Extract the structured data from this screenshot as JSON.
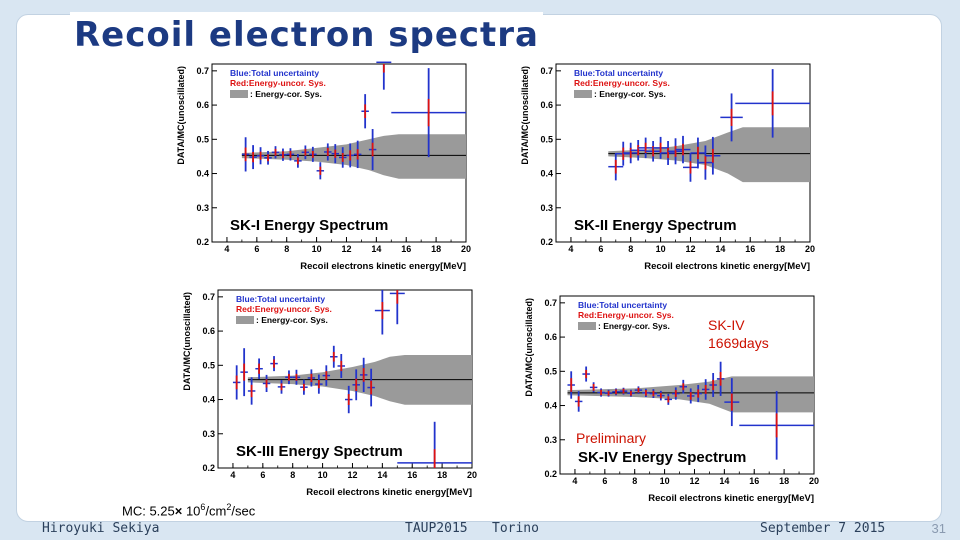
{
  "slide": {
    "title": "Recoil electron spectra",
    "annotation_sk4": "SK-IV",
    "annotation_days": "1669days",
    "preliminary": "Preliminary",
    "mc_prefix": "MC: 5.25",
    "mc_times": "×",
    "mc_base": " 10",
    "mc_exp": "6",
    "mc_unit": "/cm",
    "mc_unit_exp": "2",
    "mc_tail": "/sec",
    "footer_author": "Hiroyuki Sekiya",
    "footer_conf": "TAUP2015",
    "footer_place": "Torino",
    "footer_date": "September 7 2015",
    "page_number": "31"
  },
  "chart_data": [
    {
      "type": "scatter",
      "title": "SK-I Energy Spectrum",
      "xlabel": "Recoil electrons kinetic energy[MeV]",
      "ylabel": "DATA/MC(unoscillated)",
      "xlim": [
        3,
        20
      ],
      "ylim": [
        0.2,
        0.72
      ],
      "xticks": [
        4,
        6,
        8,
        10,
        12,
        14,
        16,
        18,
        20
      ],
      "yticks": [
        0.2,
        0.3,
        0.4,
        0.5,
        0.6,
        0.7
      ],
      "legend": [
        "Blue:Total uncertainty",
        "Red:Energy-uncor. Sys.",
        ": Energy-cor. Sys."
      ],
      "legend_position": "top-left",
      "mean_line": 0.453,
      "band": {
        "x": [
          5,
          8,
          10,
          12,
          13.5,
          14.5,
          15.5,
          20
        ],
        "upper": [
          0.46,
          0.465,
          0.475,
          0.485,
          0.5,
          0.51,
          0.515,
          0.515
        ],
        "lower": [
          0.445,
          0.44,
          0.435,
          0.425,
          0.41,
          0.395,
          0.385,
          0.385
        ]
      },
      "points": [
        {
          "x": 5.25,
          "y": 0.456,
          "err": 0.05,
          "xerr": 0.25,
          "sys": 0.02
        },
        {
          "x": 5.75,
          "y": 0.448,
          "err": 0.035,
          "xerr": 0.25,
          "sys": 0.015
        },
        {
          "x": 6.25,
          "y": 0.452,
          "err": 0.025,
          "xerr": 0.25,
          "sys": 0.012
        },
        {
          "x": 6.75,
          "y": 0.446,
          "err": 0.02,
          "xerr": 0.25,
          "sys": 0.01
        },
        {
          "x": 7.25,
          "y": 0.462,
          "err": 0.018,
          "xerr": 0.25,
          "sys": 0.01
        },
        {
          "x": 7.75,
          "y": 0.455,
          "err": 0.018,
          "xerr": 0.25,
          "sys": 0.01
        },
        {
          "x": 8.25,
          "y": 0.456,
          "err": 0.018,
          "xerr": 0.25,
          "sys": 0.01
        },
        {
          "x": 8.75,
          "y": 0.437,
          "err": 0.02,
          "xerr": 0.25,
          "sys": 0.01
        },
        {
          "x": 9.25,
          "y": 0.462,
          "err": 0.02,
          "xerr": 0.25,
          "sys": 0.01
        },
        {
          "x": 9.75,
          "y": 0.456,
          "err": 0.022,
          "xerr": 0.25,
          "sys": 0.01
        },
        {
          "x": 10.25,
          "y": 0.408,
          "err": 0.025,
          "xerr": 0.25,
          "sys": 0.012
        },
        {
          "x": 10.75,
          "y": 0.463,
          "err": 0.025,
          "xerr": 0.25,
          "sys": 0.012
        },
        {
          "x": 11.25,
          "y": 0.458,
          "err": 0.028,
          "xerr": 0.25,
          "sys": 0.012
        },
        {
          "x": 11.75,
          "y": 0.447,
          "err": 0.03,
          "xerr": 0.25,
          "sys": 0.013
        },
        {
          "x": 12.25,
          "y": 0.453,
          "err": 0.035,
          "xerr": 0.25,
          "sys": 0.015
        },
        {
          "x": 12.75,
          "y": 0.456,
          "err": 0.04,
          "xerr": 0.25,
          "sys": 0.015
        },
        {
          "x": 13.25,
          "y": 0.582,
          "err": 0.05,
          "xerr": 0.25,
          "sys": 0.02
        },
        {
          "x": 13.75,
          "y": 0.47,
          "err": 0.06,
          "xerr": 0.25,
          "sys": 0.02
        },
        {
          "x": 14.5,
          "y": 0.725,
          "err": 0.08,
          "xerr": 0.5,
          "sys": 0.03
        },
        {
          "x": 17.5,
          "y": 0.578,
          "err": 0.13,
          "xerr": 2.5,
          "sys": 0.04
        }
      ]
    },
    {
      "type": "scatter",
      "title": "SK-II Energy Spectrum",
      "xlabel": "Recoil electrons kinetic energy[MeV]",
      "ylabel": "DATA/MC(unoscillated)",
      "xlim": [
        3,
        20
      ],
      "ylim": [
        0.2,
        0.72
      ],
      "xticks": [
        4,
        6,
        8,
        10,
        12,
        14,
        16,
        18,
        20
      ],
      "yticks": [
        0.2,
        0.3,
        0.4,
        0.5,
        0.6,
        0.7
      ],
      "legend": [
        "Blue:Total uncertainty",
        "Red:Energy-uncor. Sys.",
        ": Energy-cor. Sys."
      ],
      "legend_position": "top-left",
      "mean_line": 0.458,
      "band": {
        "x": [
          6.5,
          9,
          11,
          13,
          14.5,
          15.5,
          20
        ],
        "upper": [
          0.465,
          0.47,
          0.48,
          0.495,
          0.52,
          0.535,
          0.535
        ],
        "lower": [
          0.45,
          0.445,
          0.438,
          0.425,
          0.4,
          0.375,
          0.375
        ]
      },
      "points": [
        {
          "x": 7.0,
          "y": 0.42,
          "err": 0.04,
          "xerr": 0.5,
          "sys": 0.02
        },
        {
          "x": 7.5,
          "y": 0.458,
          "err": 0.035,
          "xerr": 0.5,
          "sys": 0.018
        },
        {
          "x": 8.0,
          "y": 0.46,
          "err": 0.03,
          "xerr": 0.5,
          "sys": 0.015
        },
        {
          "x": 8.5,
          "y": 0.468,
          "err": 0.03,
          "xerr": 0.5,
          "sys": 0.015
        },
        {
          "x": 9.0,
          "y": 0.475,
          "err": 0.03,
          "xerr": 0.5,
          "sys": 0.015
        },
        {
          "x": 9.5,
          "y": 0.465,
          "err": 0.03,
          "xerr": 0.5,
          "sys": 0.015
        },
        {
          "x": 10.0,
          "y": 0.475,
          "err": 0.032,
          "xerr": 0.5,
          "sys": 0.015
        },
        {
          "x": 10.5,
          "y": 0.46,
          "err": 0.035,
          "xerr": 0.5,
          "sys": 0.015
        },
        {
          "x": 11.0,
          "y": 0.465,
          "err": 0.038,
          "xerr": 0.5,
          "sys": 0.016
        },
        {
          "x": 11.5,
          "y": 0.47,
          "err": 0.04,
          "xerr": 0.5,
          "sys": 0.017
        },
        {
          "x": 12.0,
          "y": 0.418,
          "err": 0.042,
          "xerr": 0.5,
          "sys": 0.018
        },
        {
          "x": 12.5,
          "y": 0.46,
          "err": 0.045,
          "xerr": 0.5,
          "sys": 0.018
        },
        {
          "x": 13.0,
          "y": 0.432,
          "err": 0.05,
          "xerr": 0.5,
          "sys": 0.02
        },
        {
          "x": 13.5,
          "y": 0.452,
          "err": 0.055,
          "xerr": 0.5,
          "sys": 0.02
        },
        {
          "x": 14.75,
          "y": 0.564,
          "err": 0.07,
          "xerr": 0.75,
          "sys": 0.025
        },
        {
          "x": 17.5,
          "y": 0.605,
          "err": 0.1,
          "xerr": 2.5,
          "sys": 0.035
        }
      ]
    },
    {
      "type": "scatter",
      "title": "SK-III Energy Spectrum",
      "xlabel": "Recoil electrons kinetic energy[MeV]",
      "ylabel": "DATA/MC(unoscillated)",
      "xlim": [
        3,
        20
      ],
      "ylim": [
        0.2,
        0.72
      ],
      "xticks": [
        4,
        6,
        8,
        10,
        12,
        14,
        16,
        18,
        20
      ],
      "yticks": [
        0.2,
        0.3,
        0.4,
        0.5,
        0.6,
        0.7
      ],
      "legend": [
        "Blue:Total uncertainty",
        "Red:Energy-uncor. Sys.",
        ": Energy-cor. Sys."
      ],
      "legend_position": "top-left",
      "mean_line": 0.458,
      "band": {
        "x": [
          5,
          8,
          10,
          12,
          13.5,
          14.5,
          15.5,
          20
        ],
        "upper": [
          0.465,
          0.47,
          0.48,
          0.495,
          0.51,
          0.525,
          0.53,
          0.53
        ],
        "lower": [
          0.45,
          0.445,
          0.438,
          0.425,
          0.41,
          0.395,
          0.385,
          0.385
        ]
      },
      "points": [
        {
          "x": 4.25,
          "y": 0.45,
          "err": 0.05,
          "xerr": 0.25,
          "sys": 0.02
        },
        {
          "x": 4.75,
          "y": 0.48,
          "err": 0.07,
          "xerr": 0.25,
          "sys": 0.025
        },
        {
          "x": 5.25,
          "y": 0.425,
          "err": 0.04,
          "xerr": 0.25,
          "sys": 0.018
        },
        {
          "x": 5.75,
          "y": 0.49,
          "err": 0.03,
          "xerr": 0.25,
          "sys": 0.015
        },
        {
          "x": 6.25,
          "y": 0.447,
          "err": 0.025,
          "xerr": 0.25,
          "sys": 0.012
        },
        {
          "x": 6.75,
          "y": 0.505,
          "err": 0.022,
          "xerr": 0.25,
          "sys": 0.012
        },
        {
          "x": 7.25,
          "y": 0.437,
          "err": 0.02,
          "xerr": 0.25,
          "sys": 0.01
        },
        {
          "x": 7.75,
          "y": 0.465,
          "err": 0.02,
          "xerr": 0.25,
          "sys": 0.01
        },
        {
          "x": 8.25,
          "y": 0.465,
          "err": 0.022,
          "xerr": 0.25,
          "sys": 0.01
        },
        {
          "x": 8.75,
          "y": 0.436,
          "err": 0.022,
          "xerr": 0.25,
          "sys": 0.01
        },
        {
          "x": 9.25,
          "y": 0.463,
          "err": 0.025,
          "xerr": 0.25,
          "sys": 0.012
        },
        {
          "x": 9.75,
          "y": 0.445,
          "err": 0.028,
          "xerr": 0.25,
          "sys": 0.012
        },
        {
          "x": 10.25,
          "y": 0.47,
          "err": 0.03,
          "xerr": 0.25,
          "sys": 0.013
        },
        {
          "x": 10.75,
          "y": 0.525,
          "err": 0.032,
          "xerr": 0.25,
          "sys": 0.014
        },
        {
          "x": 11.25,
          "y": 0.498,
          "err": 0.035,
          "xerr": 0.25,
          "sys": 0.015
        },
        {
          "x": 11.75,
          "y": 0.4,
          "err": 0.04,
          "xerr": 0.25,
          "sys": 0.016
        },
        {
          "x": 12.25,
          "y": 0.443,
          "err": 0.045,
          "xerr": 0.25,
          "sys": 0.018
        },
        {
          "x": 12.75,
          "y": 0.472,
          "err": 0.05,
          "xerr": 0.25,
          "sys": 0.02
        },
        {
          "x": 13.25,
          "y": 0.435,
          "err": 0.055,
          "xerr": 0.25,
          "sys": 0.02
        },
        {
          "x": 14.0,
          "y": 0.66,
          "err": 0.07,
          "xerr": 0.5,
          "sys": 0.025
        },
        {
          "x": 15.0,
          "y": 0.71,
          "err": 0.09,
          "xerr": 0.5,
          "sys": 0.03
        },
        {
          "x": 17.5,
          "y": 0.215,
          "err": 0.12,
          "xerr": 2.5,
          "sys": 0.04
        }
      ]
    },
    {
      "type": "scatter",
      "title": "SK-IV Energy Spectrum",
      "xlabel": "Recoil electrons kinetic energy[MeV]",
      "ylabel": "DATA/MC(unoscillated)",
      "xlim": [
        3,
        20
      ],
      "ylim": [
        0.2,
        0.72
      ],
      "xticks": [
        4,
        6,
        8,
        10,
        12,
        14,
        16,
        18,
        20
      ],
      "yticks": [
        0.2,
        0.3,
        0.4,
        0.5,
        0.6,
        0.7
      ],
      "legend": [
        "Blue:Total uncertainty",
        "Red:Energy-uncor. Sys.",
        ": Energy-cor. Sys."
      ],
      "legend_position": "top-left",
      "mean_line": 0.437,
      "band": {
        "x": [
          3.5,
          8,
          11,
          13,
          14.5,
          20
        ],
        "upper": [
          0.445,
          0.45,
          0.46,
          0.47,
          0.485,
          0.485
        ],
        "lower": [
          0.43,
          0.425,
          0.418,
          0.405,
          0.38,
          0.38
        ]
      },
      "points": [
        {
          "x": 3.75,
          "y": 0.46,
          "err": 0.04,
          "xerr": 0.25,
          "sys": 0.02
        },
        {
          "x": 4.25,
          "y": 0.412,
          "err": 0.03,
          "xerr": 0.25,
          "sys": 0.015
        },
        {
          "x": 4.75,
          "y": 0.492,
          "err": 0.022,
          "xerr": 0.25,
          "sys": 0.012
        },
        {
          "x": 5.25,
          "y": 0.453,
          "err": 0.015,
          "xerr": 0.25,
          "sys": 0.01
        },
        {
          "x": 5.75,
          "y": 0.438,
          "err": 0.012,
          "xerr": 0.25,
          "sys": 0.008
        },
        {
          "x": 6.25,
          "y": 0.436,
          "err": 0.01,
          "xerr": 0.25,
          "sys": 0.007
        },
        {
          "x": 6.75,
          "y": 0.44,
          "err": 0.01,
          "xerr": 0.25,
          "sys": 0.007
        },
        {
          "x": 7.25,
          "y": 0.442,
          "err": 0.01,
          "xerr": 0.25,
          "sys": 0.007
        },
        {
          "x": 7.75,
          "y": 0.436,
          "err": 0.01,
          "xerr": 0.25,
          "sys": 0.007
        },
        {
          "x": 8.25,
          "y": 0.445,
          "err": 0.011,
          "xerr": 0.25,
          "sys": 0.007
        },
        {
          "x": 8.75,
          "y": 0.437,
          "err": 0.012,
          "xerr": 0.25,
          "sys": 0.008
        },
        {
          "x": 9.25,
          "y": 0.435,
          "err": 0.013,
          "xerr": 0.25,
          "sys": 0.008
        },
        {
          "x": 9.75,
          "y": 0.429,
          "err": 0.014,
          "xerr": 0.25,
          "sys": 0.008
        },
        {
          "x": 10.25,
          "y": 0.418,
          "err": 0.016,
          "xerr": 0.25,
          "sys": 0.009
        },
        {
          "x": 10.75,
          "y": 0.435,
          "err": 0.018,
          "xerr": 0.25,
          "sys": 0.01
        },
        {
          "x": 11.25,
          "y": 0.455,
          "err": 0.02,
          "xerr": 0.25,
          "sys": 0.01
        },
        {
          "x": 11.75,
          "y": 0.428,
          "err": 0.022,
          "xerr": 0.25,
          "sys": 0.011
        },
        {
          "x": 12.25,
          "y": 0.435,
          "err": 0.025,
          "xerr": 0.25,
          "sys": 0.012
        },
        {
          "x": 12.75,
          "y": 0.447,
          "err": 0.03,
          "xerr": 0.25,
          "sys": 0.013
        },
        {
          "x": 13.25,
          "y": 0.46,
          "err": 0.035,
          "xerr": 0.25,
          "sys": 0.015
        },
        {
          "x": 13.75,
          "y": 0.478,
          "err": 0.05,
          "xerr": 0.25,
          "sys": 0.02
        },
        {
          "x": 14.5,
          "y": 0.41,
          "err": 0.07,
          "xerr": 0.5,
          "sys": 0.025
        },
        {
          "x": 17.5,
          "y": 0.342,
          "err": 0.1,
          "xerr": 2.5,
          "sys": 0.035
        }
      ]
    }
  ]
}
